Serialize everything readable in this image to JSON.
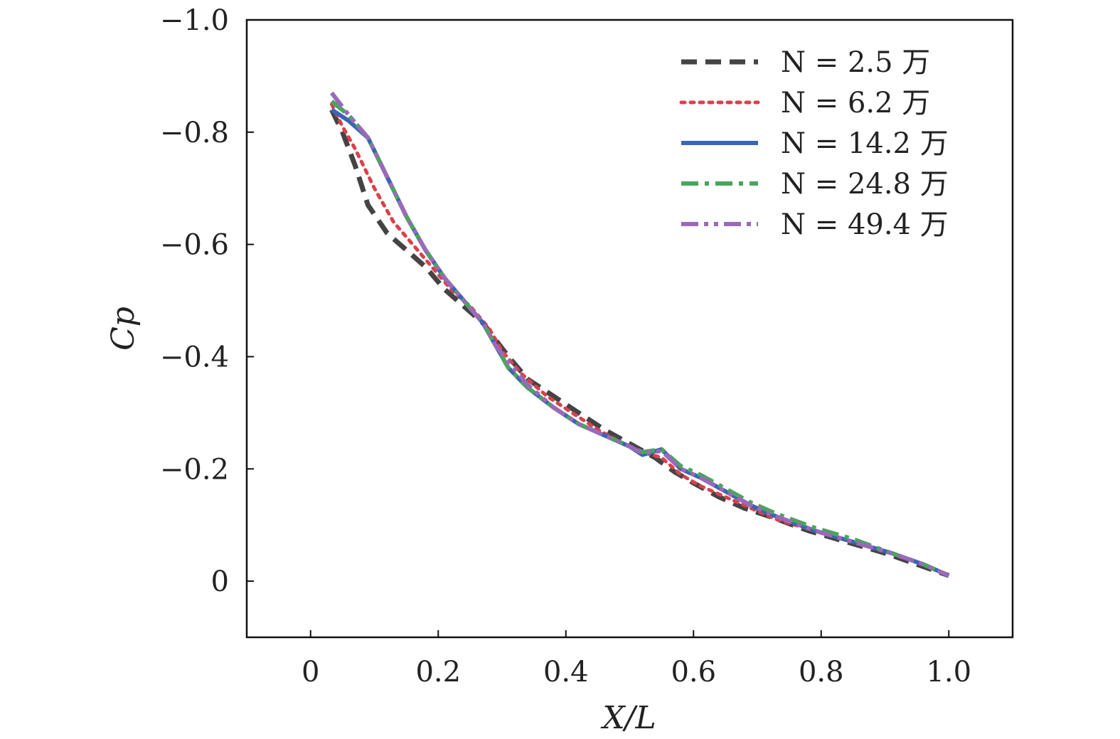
{
  "chart_data": {
    "type": "line",
    "title": "",
    "xlabel": "X/L",
    "ylabel": "Cp",
    "xlim": [
      -0.1,
      1.1
    ],
    "ylim": [
      0.1,
      -1.0
    ],
    "y_inverted": true,
    "grid": false,
    "legend_position": "top-right",
    "xticks": [
      0,
      0.2,
      0.4,
      0.6,
      0.8,
      1.0
    ],
    "xtick_labels": [
      "0",
      "0.2",
      "0.4",
      "0.6",
      "0.8",
      "1.0"
    ],
    "yticks": [
      -1.0,
      -0.8,
      -0.6,
      -0.4,
      -0.2,
      0
    ],
    "ytick_labels": [
      "−1.0",
      "−0.8",
      "−0.6",
      "−0.4",
      "−0.2",
      "0"
    ],
    "series": [
      {
        "name": "N = 2.5 万",
        "color": "#444444",
        "style": "dashed",
        "x": [
          0.033,
          0.05,
          0.07,
          0.09,
          0.12,
          0.15,
          0.18,
          0.21,
          0.24,
          0.27,
          0.29,
          0.31,
          0.34,
          0.38,
          0.42,
          0.46,
          0.5,
          0.54,
          0.57,
          0.6,
          0.64,
          0.68,
          0.72,
          0.78,
          0.84,
          0.9,
          0.95,
          1.0
        ],
        "y": [
          -0.84,
          -0.8,
          -0.74,
          -0.67,
          -0.62,
          -0.59,
          -0.56,
          -0.52,
          -0.49,
          -0.46,
          -0.43,
          -0.4,
          -0.36,
          -0.33,
          -0.3,
          -0.27,
          -0.245,
          -0.22,
          -0.195,
          -0.175,
          -0.15,
          -0.13,
          -0.115,
          -0.09,
          -0.07,
          -0.05,
          -0.03,
          -0.01
        ]
      },
      {
        "name": "N = 6.2 万",
        "color": "#d9414a",
        "style": "dotted",
        "x": [
          0.033,
          0.05,
          0.07,
          0.1,
          0.13,
          0.16,
          0.19,
          0.22,
          0.25,
          0.28,
          0.3,
          0.33,
          0.37,
          0.41,
          0.45,
          0.49,
          0.52,
          0.55,
          0.58,
          0.61,
          0.65,
          0.69,
          0.73,
          0.79,
          0.85,
          0.91,
          0.96,
          1.0
        ],
        "y": [
          -0.85,
          -0.81,
          -0.77,
          -0.7,
          -0.64,
          -0.6,
          -0.56,
          -0.52,
          -0.49,
          -0.45,
          -0.41,
          -0.37,
          -0.33,
          -0.3,
          -0.27,
          -0.245,
          -0.23,
          -0.22,
          -0.19,
          -0.17,
          -0.15,
          -0.13,
          -0.11,
          -0.09,
          -0.07,
          -0.05,
          -0.03,
          -0.01
        ]
      },
      {
        "name": "N = 14.2 万",
        "color": "#3b64b5",
        "style": "solid",
        "x": [
          0.033,
          0.06,
          0.09,
          0.12,
          0.15,
          0.18,
          0.21,
          0.24,
          0.27,
          0.29,
          0.31,
          0.34,
          0.38,
          0.42,
          0.46,
          0.5,
          0.52,
          0.55,
          0.58,
          0.61,
          0.65,
          0.69,
          0.73,
          0.79,
          0.85,
          0.91,
          0.96,
          1.0
        ],
        "y": [
          -0.84,
          -0.82,
          -0.79,
          -0.72,
          -0.65,
          -0.59,
          -0.54,
          -0.5,
          -0.46,
          -0.42,
          -0.38,
          -0.345,
          -0.31,
          -0.28,
          -0.26,
          -0.24,
          -0.225,
          -0.235,
          -0.2,
          -0.185,
          -0.16,
          -0.135,
          -0.115,
          -0.09,
          -0.07,
          -0.05,
          -0.03,
          -0.01
        ]
      },
      {
        "name": "N = 24.8 万",
        "color": "#4aa55c",
        "style": "dashdot",
        "x": [
          0.033,
          0.06,
          0.09,
          0.12,
          0.15,
          0.18,
          0.21,
          0.24,
          0.27,
          0.29,
          0.31,
          0.34,
          0.38,
          0.42,
          0.46,
          0.5,
          0.52,
          0.55,
          0.58,
          0.61,
          0.65,
          0.69,
          0.73,
          0.79,
          0.85,
          0.91,
          0.96,
          1.0
        ],
        "y": [
          -0.855,
          -0.83,
          -0.79,
          -0.72,
          -0.65,
          -0.59,
          -0.54,
          -0.5,
          -0.46,
          -0.42,
          -0.38,
          -0.345,
          -0.31,
          -0.28,
          -0.26,
          -0.24,
          -0.23,
          -0.235,
          -0.205,
          -0.19,
          -0.165,
          -0.14,
          -0.12,
          -0.095,
          -0.075,
          -0.05,
          -0.03,
          -0.01
        ]
      },
      {
        "name": "N = 49.4 万",
        "color": "#9a6ab8",
        "style": "dashdotdot",
        "x": [
          0.033,
          0.06,
          0.09,
          0.12,
          0.15,
          0.18,
          0.21,
          0.24,
          0.27,
          0.29,
          0.31,
          0.34,
          0.38,
          0.42,
          0.46,
          0.5,
          0.52,
          0.55,
          0.58,
          0.61,
          0.65,
          0.69,
          0.73,
          0.79,
          0.85,
          0.91,
          0.96,
          1.0
        ],
        "y": [
          -0.87,
          -0.83,
          -0.79,
          -0.72,
          -0.65,
          -0.59,
          -0.54,
          -0.5,
          -0.46,
          -0.42,
          -0.39,
          -0.35,
          -0.31,
          -0.28,
          -0.26,
          -0.24,
          -0.228,
          -0.232,
          -0.2,
          -0.185,
          -0.16,
          -0.135,
          -0.115,
          -0.09,
          -0.07,
          -0.05,
          -0.03,
          -0.01
        ]
      }
    ]
  }
}
